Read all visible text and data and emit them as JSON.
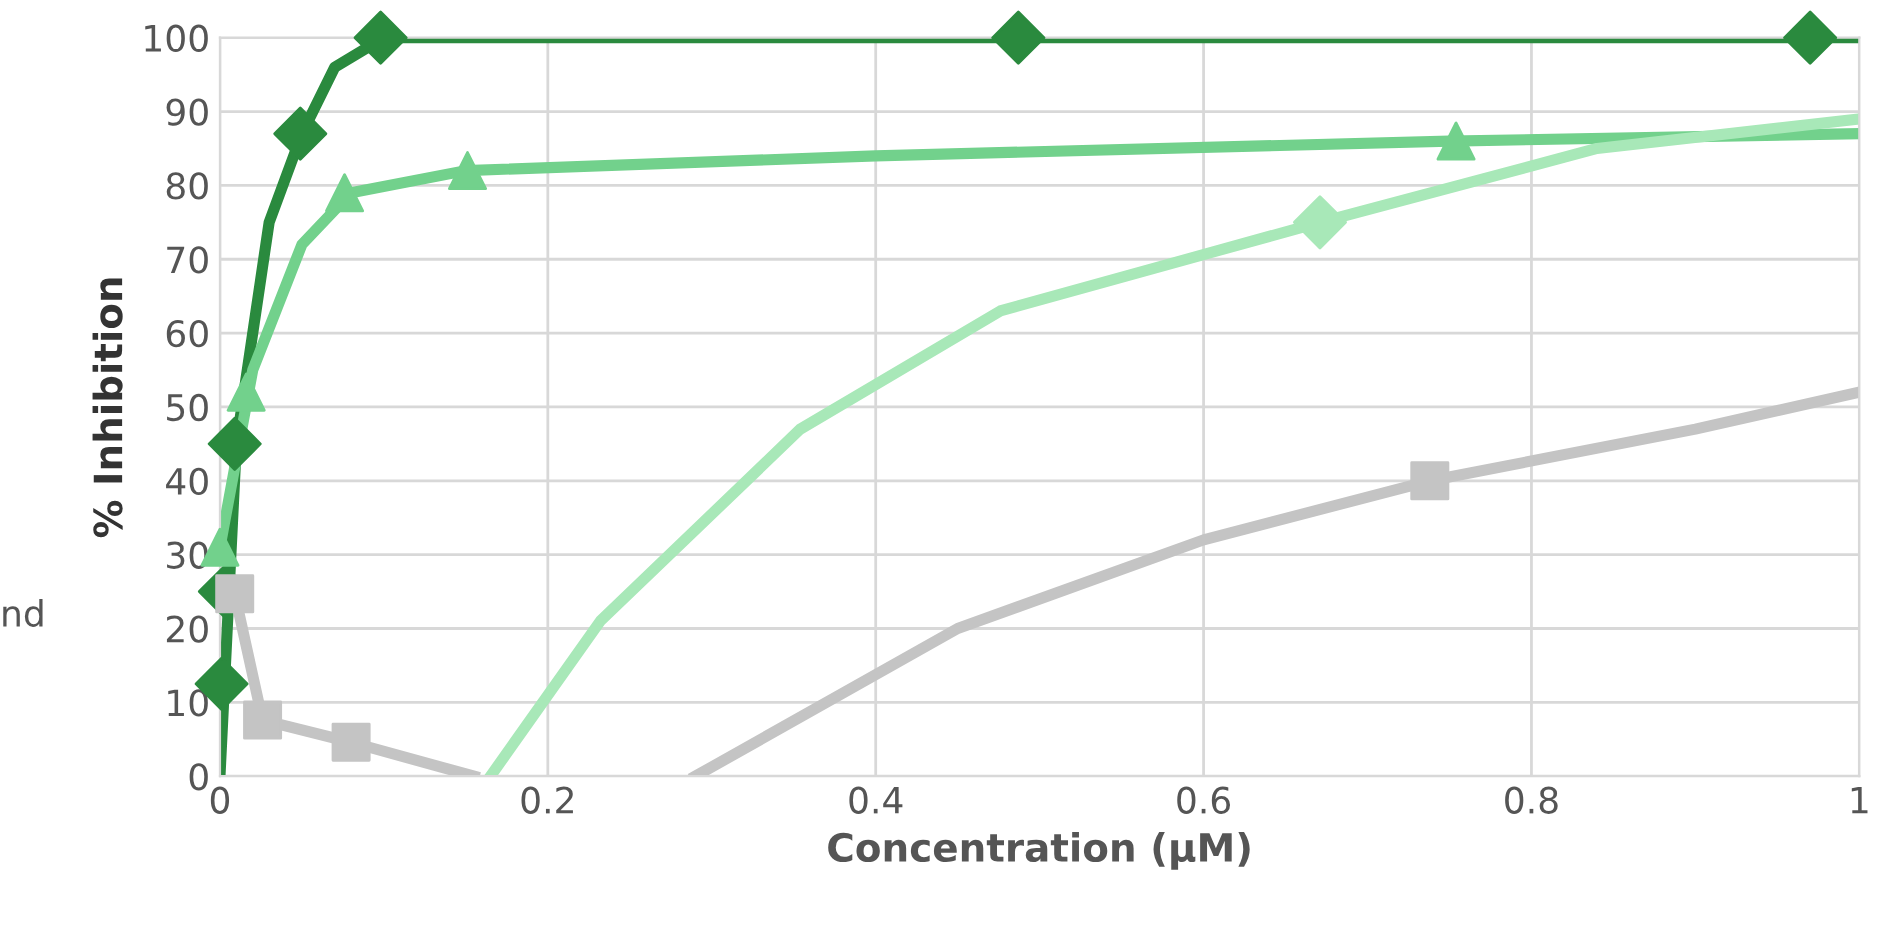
{
  "chart_data": {
    "type": "line",
    "xlabel": "Concentration (µM)",
    "ylabel": "% Inhibition",
    "xlim": [
      0,
      1
    ],
    "ylim": [
      0,
      100
    ],
    "xticks": [
      0,
      0.2,
      0.4,
      0.6,
      0.8,
      1
    ],
    "yticks": [
      0,
      10,
      20,
      30,
      40,
      50,
      60,
      70,
      80,
      90,
      100
    ],
    "grid": true,
    "legend": false,
    "annotations": [
      "nd"
    ],
    "series": [
      {
        "color": "#2a8a3e",
        "marker": "none",
        "x": [
          0,
          0.01,
          0.03,
          0.05,
          0.07,
          0.1,
          0.2,
          0.5,
          1.0
        ],
        "values": [
          0,
          45,
          75,
          87,
          96,
          100,
          100,
          100,
          100
        ]
      },
      {
        "type": "scatter",
        "color": "#2a8a3e",
        "marker": "diamond",
        "x": [
          0.001,
          0.003,
          0.009,
          0.049,
          0.098,
          0.487,
          0.97
        ],
        "values": [
          12.5,
          25,
          45,
          87,
          100,
          100,
          100
        ]
      },
      {
        "color": "#72d18c",
        "marker": "none",
        "x": [
          0,
          0.02,
          0.05,
          0.08,
          0.15,
          0.4,
          0.75,
          1.0
        ],
        "values": [
          31,
          55,
          72,
          79,
          82,
          84,
          86,
          87
        ]
      },
      {
        "type": "scatter",
        "color": "#72d18c",
        "marker": "triangle",
        "x": [
          0,
          0.016,
          0.076,
          0.151,
          0.754
        ],
        "values": [
          31,
          52,
          79,
          82,
          86
        ]
      },
      {
        "color": "#a8e8b8",
        "marker": "none",
        "x": [
          0.165,
          0.232,
          0.354,
          0.476,
          0.671,
          0.84,
          1.0
        ],
        "values": [
          0,
          21,
          47,
          63,
          75,
          85,
          89
        ]
      },
      {
        "type": "scatter",
        "color": "#a8e8b8",
        "marker": "diamond",
        "x": [
          0.671
        ],
        "values": [
          75
        ]
      },
      {
        "color": "#c4c4c4",
        "marker": "none",
        "x": [
          0.009,
          0.026,
          0.08,
          0.155,
          0.22,
          0.29,
          0.45,
          0.6,
          0.738,
          0.9,
          1.0
        ],
        "values": [
          24.7,
          7.6,
          4.6,
          0,
          null,
          0,
          20,
          32,
          40,
          47,
          52
        ]
      },
      {
        "type": "scatter",
        "color": "#c4c4c4",
        "marker": "square",
        "x": [
          0.009,
          0.026,
          0.08,
          0.738
        ],
        "values": [
          24.7,
          7.6,
          4.6,
          40
        ]
      }
    ]
  }
}
